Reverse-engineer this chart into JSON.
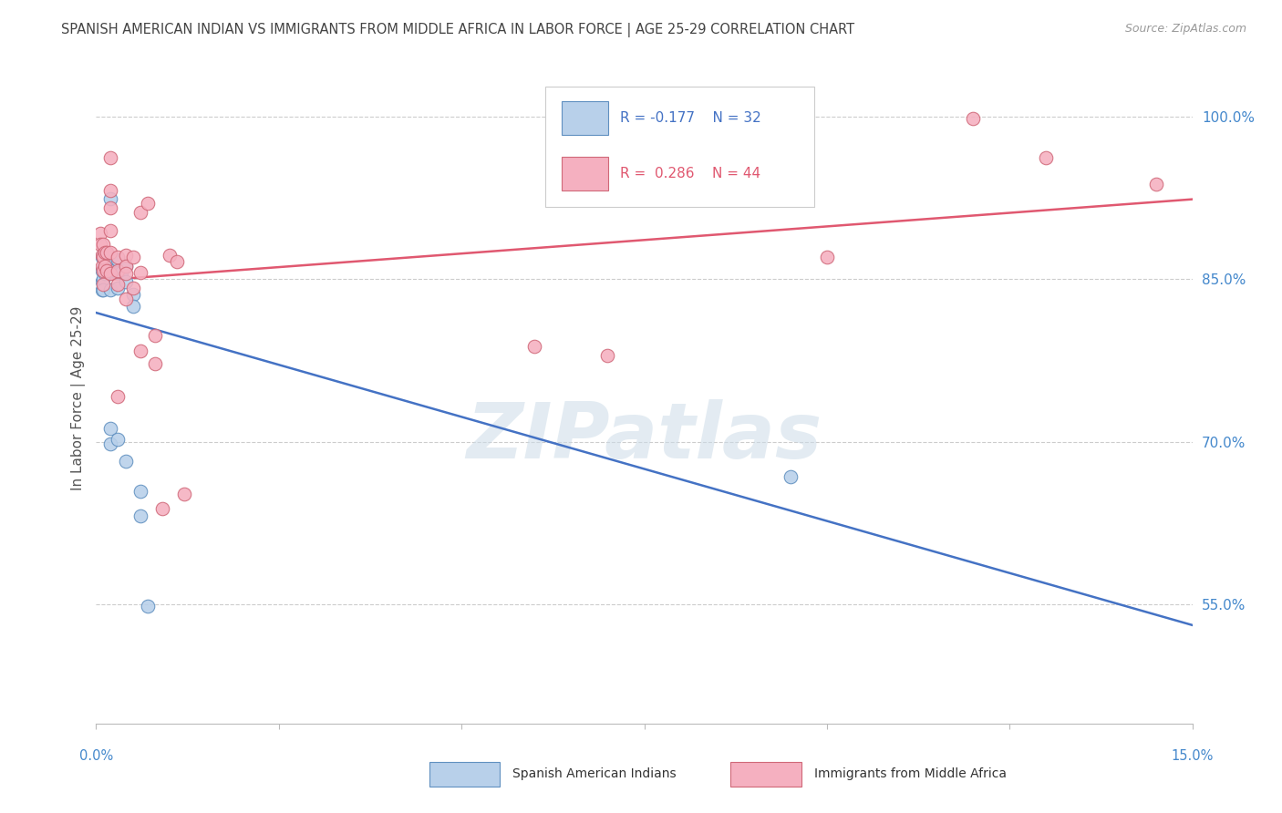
{
  "title": "SPANISH AMERICAN INDIAN VS IMMIGRANTS FROM MIDDLE AFRICA IN LABOR FORCE | AGE 25-29 CORRELATION CHART",
  "source": "Source: ZipAtlas.com",
  "ylabel": "In Labor Force | Age 25-29",
  "legend_blue_R": "-0.177",
  "legend_blue_N": "32",
  "legend_pink_R": "0.286",
  "legend_pink_N": "44",
  "xlim": [
    0.0,
    0.15
  ],
  "ylim": [
    0.44,
    1.04
  ],
  "y_ticks_right": [
    55.0,
    70.0,
    85.0,
    100.0
  ],
  "blue_fill_color": "#b8d0ea",
  "pink_fill_color": "#f5b0c0",
  "blue_edge_color": "#6090c0",
  "pink_edge_color": "#d06878",
  "blue_line_color": "#4472c4",
  "pink_line_color": "#e05870",
  "axis_label_color": "#4488cc",
  "title_color": "#444444",
  "grid_color": "#cccccc",
  "bg_color": "#ffffff",
  "marker_size": 110,
  "blue_scatter": [
    [
      0.0008,
      0.87
    ],
    [
      0.0008,
      0.858
    ],
    [
      0.0008,
      0.848
    ],
    [
      0.0008,
      0.84
    ],
    [
      0.001,
      0.872
    ],
    [
      0.001,
      0.86
    ],
    [
      0.001,
      0.85
    ],
    [
      0.001,
      0.84
    ],
    [
      0.0012,
      0.868
    ],
    [
      0.0012,
      0.855
    ],
    [
      0.0015,
      0.87
    ],
    [
      0.0015,
      0.858
    ],
    [
      0.002,
      0.924
    ],
    [
      0.002,
      0.87
    ],
    [
      0.002,
      0.858
    ],
    [
      0.002,
      0.84
    ],
    [
      0.002,
      0.712
    ],
    [
      0.002,
      0.698
    ],
    [
      0.003,
      0.868
    ],
    [
      0.003,
      0.856
    ],
    [
      0.003,
      0.842
    ],
    [
      0.003,
      0.702
    ],
    [
      0.0035,
      0.856
    ],
    [
      0.004,
      0.862
    ],
    [
      0.004,
      0.848
    ],
    [
      0.004,
      0.682
    ],
    [
      0.005,
      0.836
    ],
    [
      0.005,
      0.825
    ],
    [
      0.006,
      0.654
    ],
    [
      0.006,
      0.632
    ],
    [
      0.007,
      0.548
    ],
    [
      0.095,
      0.668
    ]
  ],
  "pink_scatter": [
    [
      0.0006,
      0.892
    ],
    [
      0.0006,
      0.882
    ],
    [
      0.0008,
      0.872
    ],
    [
      0.0008,
      0.862
    ],
    [
      0.001,
      0.882
    ],
    [
      0.001,
      0.87
    ],
    [
      0.001,
      0.858
    ],
    [
      0.001,
      0.845
    ],
    [
      0.0012,
      0.875
    ],
    [
      0.0012,
      0.862
    ],
    [
      0.0015,
      0.875
    ],
    [
      0.0015,
      0.858
    ],
    [
      0.002,
      0.962
    ],
    [
      0.002,
      0.932
    ],
    [
      0.002,
      0.916
    ],
    [
      0.002,
      0.895
    ],
    [
      0.002,
      0.875
    ],
    [
      0.002,
      0.855
    ],
    [
      0.003,
      0.87
    ],
    [
      0.003,
      0.858
    ],
    [
      0.003,
      0.845
    ],
    [
      0.003,
      0.742
    ],
    [
      0.004,
      0.872
    ],
    [
      0.004,
      0.862
    ],
    [
      0.004,
      0.855
    ],
    [
      0.004,
      0.832
    ],
    [
      0.005,
      0.87
    ],
    [
      0.005,
      0.842
    ],
    [
      0.006,
      0.912
    ],
    [
      0.006,
      0.856
    ],
    [
      0.006,
      0.784
    ],
    [
      0.007,
      0.92
    ],
    [
      0.008,
      0.798
    ],
    [
      0.008,
      0.772
    ],
    [
      0.009,
      0.638
    ],
    [
      0.01,
      0.872
    ],
    [
      0.011,
      0.866
    ],
    [
      0.012,
      0.652
    ],
    [
      0.06,
      0.788
    ],
    [
      0.07,
      0.78
    ],
    [
      0.1,
      0.87
    ],
    [
      0.12,
      0.998
    ],
    [
      0.13,
      0.962
    ],
    [
      0.145,
      0.938
    ]
  ],
  "watermark_text": "ZIPatlas"
}
